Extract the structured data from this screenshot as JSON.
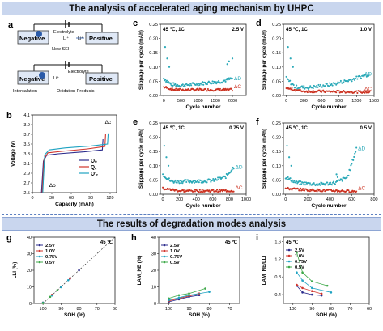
{
  "headers": {
    "top": "The analysis of accelerated aging mechanism by UHPC",
    "bottom": "The results of degradation modes analysis"
  },
  "panel_a": {
    "letter": "a",
    "top_labels": {
      "negative": "Negative",
      "positive": "Positive",
      "electrolyte": "Electrolyte",
      "li_plus": "Li⁺",
      "new_sei": "New SEI"
    },
    "bottom_labels": {
      "negative": "Negative",
      "positive": "Positive",
      "electrolyte": "Electrolyte",
      "li_plus": "Li⁺",
      "intercalation": "Intercalation",
      "oxidation": "Oxidation Products"
    }
  },
  "colors": {
    "delta_c": "#cc3322",
    "delta_d": "#2aa9b8",
    "v25": "#2b2b8c",
    "v10": "#d0342c",
    "v075": "#1fa3c2",
    "v05": "#3ea94a"
  },
  "chart_data": [
    {
      "id": "b",
      "type": "line",
      "xlabel": "Capacity (mAh)",
      "ylabel": "Voltage (V)",
      "xticks": [
        "0",
        "30",
        "60",
        "90",
        "120"
      ],
      "yticks": [
        "2.5",
        "2.7",
        "2.9",
        "3.1",
        "3.3",
        "3.5",
        "3.7",
        "3.9",
        "4.1"
      ],
      "xlim": [
        0,
        130
      ],
      "ylim": [
        2.5,
        4.1
      ],
      "legend": [
        "Qₒ",
        "Q꜀",
        "Q'꜀"
      ],
      "annotations": [
        "Δc",
        "Δo"
      ],
      "series": [
        {
          "name": "Qₒ",
          "color": "#2b2b8c",
          "points": [
            [
              14,
              2.5
            ],
            [
              17,
              3.15
            ],
            [
              22,
              3.27
            ],
            [
              40,
              3.3
            ],
            [
              80,
              3.34
            ],
            [
              108,
              3.38
            ],
            [
              109,
              3.6
            ]
          ]
        },
        {
          "name": "Q꜀",
          "color": "#d0342c",
          "points": [
            [
              15,
              2.5
            ],
            [
              18,
              3.2
            ],
            [
              24,
              3.32
            ],
            [
              45,
              3.35
            ],
            [
              85,
              3.4
            ],
            [
              112,
              3.45
            ],
            [
              113,
              3.7
            ]
          ]
        },
        {
          "name": "Q'꜀",
          "color": "#1fa3c2",
          "points": [
            [
              16,
              2.5
            ],
            [
              19,
              3.28
            ],
            [
              26,
              3.38
            ],
            [
              50,
              3.42
            ],
            [
              90,
              3.46
            ],
            [
              116,
              3.5
            ],
            [
              117,
              3.72
            ]
          ]
        }
      ]
    },
    {
      "id": "c",
      "type": "scatter",
      "condition": "45 ℃, 1C",
      "voltage": "2.5 V",
      "xlabel": "Cycle number",
      "ylabel": "Slippage per cycle (mAh)",
      "xticks": [
        "0",
        "500",
        "1000",
        "1500",
        "2000"
      ],
      "yticks": [
        "0.00",
        "0.05",
        "0.10",
        "0.15",
        "0.20",
        "0.25"
      ],
      "xlim": [
        -100,
        2400
      ],
      "ylim": [
        0,
        0.25
      ],
      "xmax": 2000,
      "d_profile": [
        [
          0,
          0.06
        ],
        [
          200,
          0.04
        ],
        [
          500,
          0.035
        ],
        [
          900,
          0.04
        ],
        [
          1300,
          0.045
        ],
        [
          1700,
          0.05
        ],
        [
          2000,
          0.06
        ]
      ],
      "c_profile": [
        [
          0,
          0.03
        ],
        [
          300,
          0.02
        ],
        [
          1000,
          0.02
        ],
        [
          2000,
          0.02
        ]
      ],
      "spike": [
        [
          2000,
          0.13
        ],
        [
          1900,
          0.12
        ],
        [
          1850,
          0.11
        ]
      ],
      "legend": [
        "ΔD",
        "ΔC"
      ]
    },
    {
      "id": "d",
      "type": "scatter",
      "condition": "45 ℃, 1C",
      "voltage": "1.0 V",
      "xlabel": "Cycle number",
      "ylabel": "Slippage per cycle (mAh)",
      "xticks": [
        "0",
        "300",
        "600",
        "900",
        "1200",
        "1500"
      ],
      "yticks": [
        "0.00",
        "0.05",
        "0.10",
        "0.15",
        "0.20",
        "0.25"
      ],
      "xlim": [
        -50,
        1500
      ],
      "ylim": [
        0,
        0.25
      ],
      "xmax": 1420,
      "d_profile": [
        [
          0,
          0.06
        ],
        [
          150,
          0.03
        ],
        [
          400,
          0.028
        ],
        [
          800,
          0.04
        ],
        [
          1100,
          0.055
        ],
        [
          1420,
          0.075
        ]
      ],
      "c_profile": [
        [
          0,
          0.025
        ],
        [
          300,
          0.015
        ],
        [
          1420,
          0.012
        ]
      ],
      "spike": [],
      "legend": [
        "ΔD",
        "ΔC"
      ]
    },
    {
      "id": "e",
      "type": "scatter",
      "condition": "45 ℃, 1C",
      "voltage": "0.75 V",
      "xlabel": "Cycle number",
      "ylabel": "Slippage per cycle (mAh)",
      "xticks": [
        "0",
        "200",
        "400",
        "600",
        "800",
        "1000"
      ],
      "yticks": [
        "0.00",
        "0.05",
        "0.10",
        "0.15",
        "0.20",
        "0.25"
      ],
      "xlim": [
        -30,
        1000
      ],
      "ylim": [
        0,
        0.25
      ],
      "xmax": 850,
      "d_profile": [
        [
          0,
          0.07
        ],
        [
          100,
          0.045
        ],
        [
          300,
          0.045
        ],
        [
          600,
          0.048
        ],
        [
          750,
          0.06
        ],
        [
          850,
          0.095
        ]
      ],
      "c_profile": [
        [
          0,
          0.02
        ],
        [
          200,
          0.012
        ],
        [
          850,
          0.012
        ]
      ],
      "spike": [],
      "legend": [
        "ΔD",
        "ΔC"
      ]
    },
    {
      "id": "f",
      "type": "scatter",
      "condition": "45 ℃, 1C",
      "voltage": "0.5 V",
      "xlabel": "Cycle number",
      "ylabel": "Slippage per cycle (mAh)",
      "xticks": [
        "0",
        "200",
        "400",
        "600",
        "800"
      ],
      "yticks": [
        "0.00",
        "0.05",
        "0.10",
        "0.15",
        "0.20",
        "0.25"
      ],
      "xlim": [
        -20,
        800
      ],
      "ylim": [
        0,
        0.25
      ],
      "xmax": 640,
      "d_profile": [
        [
          0,
          0.06
        ],
        [
          100,
          0.04
        ],
        [
          300,
          0.035
        ],
        [
          450,
          0.04
        ],
        [
          560,
          0.06
        ],
        [
          640,
          0.16
        ]
      ],
      "c_profile": [
        [
          0,
          0.02
        ],
        [
          200,
          0.015
        ],
        [
          640,
          0.01
        ]
      ],
      "spike": [
        [
          460,
          0.07
        ],
        [
          470,
          0.06
        ]
      ],
      "legend": [
        "ΔD",
        "ΔC"
      ]
    },
    {
      "id": "g",
      "type": "scatter",
      "note": "45 ℃",
      "xlabel": "SOH (%)",
      "ylabel": "LLI (%)",
      "xticks": [
        "100",
        "90",
        "80",
        "70",
        "60"
      ],
      "yticks": [
        "0",
        "10",
        "20",
        "30",
        "40"
      ],
      "xlim": [
        105,
        60
      ],
      "ylim": [
        0,
        40
      ],
      "legend": [
        "2.5V",
        "1.0V",
        "0.75V",
        "0.5V"
      ],
      "series": [
        {
          "name": "2.5V",
          "color": "#2b2b8c",
          "points": [
            [
              100,
              0.5
            ],
            [
              95,
              5
            ],
            [
              90,
              10
            ],
            [
              85,
              15
            ],
            [
              80,
              20
            ]
          ]
        },
        {
          "name": "1.0V",
          "color": "#d0342c",
          "points": [
            [
              100,
              0.3
            ],
            [
              95,
              5.2
            ],
            [
              90,
              10.1
            ],
            [
              85,
              15.2
            ]
          ]
        },
        {
          "name": "0.75V",
          "color": "#1fa3c2",
          "points": [
            [
              100,
              0.4
            ],
            [
              95,
              4.8
            ],
            [
              90,
              9.8
            ],
            [
              86,
              14
            ]
          ]
        },
        {
          "name": "0.5V",
          "color": "#3ea94a",
          "points": [
            [
              100,
              0.2
            ],
            [
              96,
              4
            ],
            [
              92,
              8
            ]
          ]
        }
      ]
    },
    {
      "id": "h",
      "type": "line",
      "note": "45 ℃",
      "xlabel": "SOH (%)",
      "ylabel": "LAM_NE (%)",
      "xticks": [
        "100",
        "90",
        "80",
        "70"
      ],
      "yticks": [
        "0",
        "10",
        "20",
        "30",
        "40"
      ],
      "xlim": [
        105,
        65
      ],
      "ylim": [
        0,
        40
      ],
      "legend": [
        "2.5V",
        "1.0V",
        "0.75V",
        "0.5V"
      ],
      "series": [
        {
          "name": "2.5V",
          "color": "#2b2b8c",
          "points": [
            [
              100,
              1
            ],
            [
              95,
              2.5
            ],
            [
              90,
              4
            ],
            [
              85,
              5
            ]
          ]
        },
        {
          "name": "1.0V",
          "color": "#d0342c",
          "points": [
            [
              100,
              1.5
            ],
            [
              95,
              3
            ],
            [
              90,
              4.5
            ],
            [
              85,
              6
            ]
          ]
        },
        {
          "name": "0.75V",
          "color": "#1fa3c2",
          "points": [
            [
              100,
              2
            ],
            [
              95,
              3.5
            ],
            [
              90,
              5
            ],
            [
              80,
              7
            ]
          ]
        },
        {
          "name": "0.5V",
          "color": "#3ea94a",
          "points": [
            [
              100,
              3
            ],
            [
              95,
              5
            ],
            [
              90,
              6
            ],
            [
              82,
              9
            ]
          ]
        }
      ]
    },
    {
      "id": "i",
      "type": "line",
      "note": "45 ℃",
      "xlabel": "SOH (%)",
      "ylabel": "LAM_NE/LLI",
      "xticks": [
        "100",
        "90",
        "80",
        "70",
        "60"
      ],
      "yticks": [
        "0.4",
        "0.8",
        "1.2",
        "1.6"
      ],
      "xlim": [
        105,
        60
      ],
      "ylim": [
        0.2,
        1.7
      ],
      "legend": [
        "2.5V",
        "1.0V",
        "0.75V",
        "0.5V"
      ],
      "series": [
        {
          "name": "2.5V",
          "color": "#2b2b8c",
          "points": [
            [
              98,
              0.6
            ],
            [
              95,
              0.45
            ],
            [
              90,
              0.4
            ],
            [
              85,
              0.38
            ]
          ]
        },
        {
          "name": "1.0V",
          "color": "#d0342c",
          "points": [
            [
              98,
              0.62
            ],
            [
              95,
              0.55
            ],
            [
              90,
              0.48
            ],
            [
              85,
              0.42
            ]
          ]
        },
        {
          "name": "0.75V",
          "color": "#1fa3c2",
          "points": [
            [
              98,
              0.9
            ],
            [
              95,
              0.72
            ],
            [
              90,
              0.55
            ],
            [
              80,
              0.45
            ]
          ]
        },
        {
          "name": "0.5V",
          "color": "#3ea94a",
          "points": [
            [
              98,
              1.35
            ],
            [
              95,
              0.9
            ],
            [
              90,
              0.7
            ],
            [
              82,
              0.6
            ]
          ]
        }
      ]
    }
  ]
}
